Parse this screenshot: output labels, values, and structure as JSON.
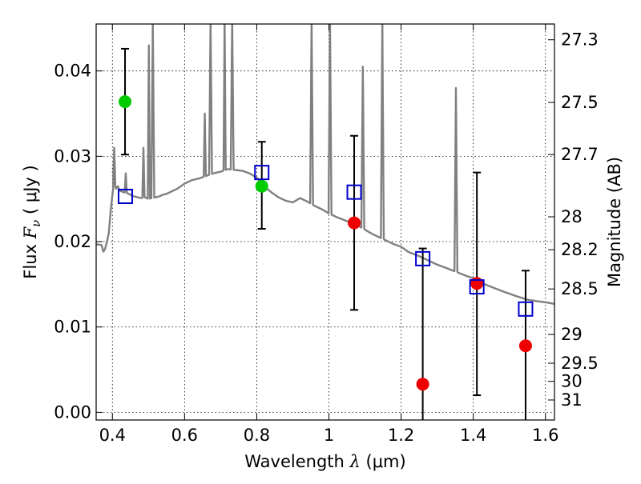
{
  "chart_data": {
    "type": "scatter",
    "xlabel": {
      "prefix": "Wavelength  ",
      "symbol": "λ",
      "suffix": " (μm)"
    },
    "ylabel": {
      "prefix": "Flux  ",
      "symbol": "F",
      "subscript": "ν",
      "suffix": "  ( μJy )"
    },
    "y2label": "Magnitude (AB)",
    "xlim": [
      0.355,
      1.625
    ],
    "ylim": [
      -0.0009,
      0.0455
    ],
    "x_ticks": [
      {
        "value": 0.4,
        "label": "0.4"
      },
      {
        "value": 0.6,
        "label": "0.6"
      },
      {
        "value": 0.8,
        "label": "0.8"
      },
      {
        "value": 1.0,
        "label": "1"
      },
      {
        "value": 1.2,
        "label": "1.2"
      },
      {
        "value": 1.4,
        "label": "1.4"
      },
      {
        "value": 1.6,
        "label": "1.6"
      }
    ],
    "y_ticks": [
      {
        "value": 0.0,
        "label": "0.00"
      },
      {
        "value": 0.01,
        "label": "0.01"
      },
      {
        "value": 0.02,
        "label": "0.02"
      },
      {
        "value": 0.03,
        "label": "0.03"
      },
      {
        "value": 0.04,
        "label": "0.04"
      }
    ],
    "y2_ticks": [
      {
        "value": 27.3,
        "label": "27.3"
      },
      {
        "value": 27.5,
        "label": "27.5"
      },
      {
        "value": 27.7,
        "label": "27.7"
      },
      {
        "value": 28.0,
        "label": "28"
      },
      {
        "value": 28.2,
        "label": "28.2"
      },
      {
        "value": 28.5,
        "label": "28.5"
      },
      {
        "value": 29.0,
        "label": "29"
      },
      {
        "value": 29.5,
        "label": "29.5"
      },
      {
        "value": 30.0,
        "label": "30"
      },
      {
        "value": 31.0,
        "label": "31"
      }
    ],
    "grid": true,
    "colors": {
      "spectrum": "#808080",
      "model": "#0000cc",
      "detection": "#00cc00",
      "upper": "#ee0000",
      "errorbar": "#000000"
    },
    "series": [
      {
        "kind": "spectrum",
        "x": [
          0.355,
          0.37,
          0.375,
          0.38,
          0.385,
          0.39,
          0.395,
          0.4,
          0.405,
          0.41,
          0.415,
          0.42,
          0.43,
          0.44,
          0.45,
          0.46,
          0.47,
          0.48,
          0.49,
          0.5,
          0.51,
          0.52,
          0.53,
          0.54,
          0.55,
          0.56,
          0.58,
          0.6,
          0.62,
          0.64,
          0.66,
          0.68,
          0.7,
          0.72,
          0.74,
          0.76,
          0.78,
          0.8,
          0.82,
          0.84,
          0.86,
          0.88,
          0.9,
          0.92,
          0.94,
          0.96,
          0.98,
          1.0,
          1.02,
          1.05,
          1.08,
          1.1,
          1.12,
          1.15,
          1.18,
          1.2,
          1.22,
          1.25,
          1.28,
          1.3,
          1.32,
          1.35,
          1.38,
          1.4,
          1.42,
          1.45,
          1.48,
          1.5,
          1.52,
          1.55,
          1.58,
          1.6,
          1.625
        ],
        "y": [
          0.0197,
          0.0196,
          0.0188,
          0.0192,
          0.02,
          0.021,
          0.0235,
          0.0255,
          0.027,
          0.0262,
          0.0265,
          0.026,
          0.0258,
          0.0257,
          0.0255,
          0.0253,
          0.0252,
          0.0251,
          0.0252,
          0.025,
          0.0251,
          0.0252,
          0.0253,
          0.0255,
          0.0256,
          0.0258,
          0.0262,
          0.0268,
          0.0272,
          0.0274,
          0.0277,
          0.028,
          0.0282,
          0.0285,
          0.0284,
          0.0283,
          0.028,
          0.0275,
          0.0265,
          0.0258,
          0.0252,
          0.0248,
          0.0246,
          0.0251,
          0.0247,
          0.0242,
          0.0238,
          0.0233,
          0.0229,
          0.0224,
          0.0219,
          0.0214,
          0.0209,
          0.0203,
          0.0197,
          0.0194,
          0.0188,
          0.0183,
          0.0177,
          0.0173,
          0.017,
          0.0165,
          0.016,
          0.0157,
          0.0152,
          0.0147,
          0.0142,
          0.0139,
          0.0136,
          0.0132,
          0.013,
          0.0129,
          0.0127
        ]
      },
      {
        "kind": "emission-lines",
        "lines": [
          {
            "x": 0.372,
            "peak": 0.0175,
            "halfwidth": 0.004
          },
          {
            "x": 0.405,
            "peak": 0.031,
            "halfwidth": 0.003
          },
          {
            "x": 0.437,
            "peak": 0.028,
            "halfwidth": 0.003
          },
          {
            "x": 0.486,
            "peak": 0.031,
            "halfwidth": 0.003
          },
          {
            "x": 0.501,
            "peak": 0.043,
            "halfwidth": 0.003
          },
          {
            "x": 0.512,
            "peak": 0.046,
            "halfwidth": 0.004
          },
          {
            "x": 0.656,
            "peak": 0.035,
            "halfwidth": 0.003
          },
          {
            "x": 0.672,
            "peak": 0.046,
            "halfwidth": 0.004
          },
          {
            "x": 0.711,
            "peak": 0.046,
            "halfwidth": 0.003
          },
          {
            "x": 0.732,
            "peak": 0.046,
            "halfwidth": 0.004
          },
          {
            "x": 0.952,
            "peak": 0.046,
            "halfwidth": 0.004
          },
          {
            "x": 1.003,
            "peak": 0.046,
            "halfwidth": 0.004
          },
          {
            "x": 1.094,
            "peak": 0.0405,
            "halfwidth": 0.004
          },
          {
            "x": 1.148,
            "peak": 0.046,
            "halfwidth": 0.004
          },
          {
            "x": 1.352,
            "peak": 0.038,
            "halfwidth": 0.004
          }
        ]
      },
      {
        "kind": "model-photometry",
        "x": [
          0.436,
          0.814,
          1.07,
          1.26,
          1.41,
          1.545
        ],
        "y": [
          0.0253,
          0.0281,
          0.0258,
          0.018,
          0.0147,
          0.0121
        ]
      },
      {
        "kind": "detections",
        "x": [
          0.435,
          0.814
        ],
        "y": [
          0.0364,
          0.0265
        ],
        "yerr_low": [
          0.0302,
          0.0215
        ],
        "yerr_high": [
          0.0426,
          0.0317
        ]
      },
      {
        "kind": "weak-detections",
        "x": [
          1.07,
          1.26,
          1.41,
          1.545
        ],
        "y": [
          0.0222,
          0.0033,
          0.0151,
          0.0078
        ],
        "yerr_low": [
          0.012,
          -0.0009,
          0.002,
          -0.0009
        ],
        "yerr_high": [
          0.0324,
          0.0192,
          0.0281,
          0.0166
        ]
      }
    ]
  }
}
